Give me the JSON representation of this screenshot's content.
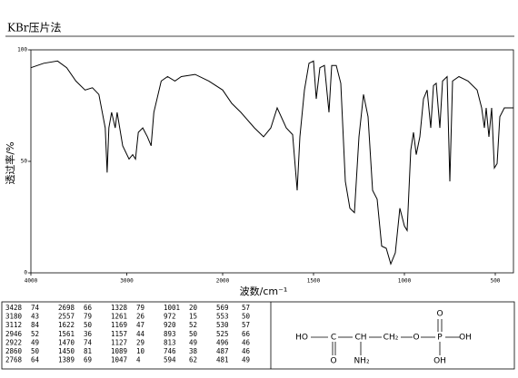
{
  "chart_data": {
    "type": "line",
    "title": "KBr压片法",
    "xlabel": "波数/cm⁻¹",
    "ylabel": "透过率/%",
    "xlim": [
      4000,
      400
    ],
    "x_scale_change": 2000,
    "xticks": [
      4000,
      3000,
      2000,
      1500,
      1000,
      500
    ],
    "ylim": [
      0,
      100
    ],
    "yticks": [
      0,
      50,
      100
    ],
    "color": "#000000",
    "grid": false,
    "x": [
      4000,
      3866,
      3722,
      3627,
      3531,
      3435,
      3358,
      3291,
      3225,
      3205,
      3187,
      3158,
      3120,
      3100,
      3043,
      2976,
      2938,
      2909,
      2880,
      2833,
      2785,
      2746,
      2718,
      2641,
      2574,
      2498,
      2431,
      2287,
      2144,
      2000,
      1950,
      1900,
      1825,
      1775,
      1735,
      1700,
      1650,
      1615,
      1590,
      1575,
      1550,
      1525,
      1500,
      1485,
      1465,
      1440,
      1415,
      1400,
      1375,
      1350,
      1325,
      1300,
      1275,
      1250,
      1225,
      1200,
      1175,
      1150,
      1125,
      1100,
      1075,
      1050,
      1025,
      1000,
      985,
      965,
      950,
      935,
      915,
      895,
      875,
      855,
      840,
      825,
      805,
      790,
      765,
      750,
      735,
      700,
      650,
      600,
      575,
      560,
      550,
      535,
      520,
      505,
      490,
      475,
      450,
      400
    ],
    "values": [
      92,
      94,
      95,
      92,
      86,
      82,
      83,
      80,
      65,
      45,
      65,
      72,
      65,
      72,
      57,
      51,
      53,
      51,
      63,
      65,
      61,
      57,
      72,
      86,
      88,
      86,
      88,
      89,
      86,
      82,
      76,
      72,
      65,
      61,
      65,
      74,
      65,
      62,
      37,
      61,
      82,
      94,
      95,
      78,
      92,
      93,
      72,
      93,
      93,
      85,
      41,
      29,
      27,
      61,
      80,
      70,
      37,
      33,
      12,
      11,
      4,
      9,
      29,
      21,
      19,
      55,
      63,
      53,
      61,
      78,
      82,
      65,
      84,
      85,
      65,
      86,
      88,
      41,
      86,
      88,
      86,
      82,
      74,
      65,
      74,
      61,
      74,
      47,
      49,
      70,
      74,
      74
    ]
  },
  "peak_table": {
    "columns": [
      [
        [
          3428,
          74
        ],
        [
          3180,
          43
        ],
        [
          3112,
          84
        ],
        [
          2946,
          52
        ],
        [
          2922,
          49
        ],
        [
          2860,
          50
        ],
        [
          2768,
          64
        ]
      ],
      [
        [
          2698,
          66
        ],
        [
          2557,
          79
        ],
        [
          1622,
          50
        ],
        [
          1561,
          36
        ],
        [
          1470,
          74
        ],
        [
          1450,
          81
        ],
        [
          1389,
          69
        ]
      ],
      [
        [
          1328,
          79
        ],
        [
          1261,
          26
        ],
        [
          1169,
          47
        ],
        [
          1157,
          44
        ],
        [
          1127,
          29
        ],
        [
          1089,
          10
        ],
        [
          1047,
          4
        ]
      ],
      [
        [
          1001,
          20
        ],
        [
          972,
          15
        ],
        [
          920,
          52
        ],
        [
          893,
          50
        ],
        [
          813,
          49
        ],
        [
          746,
          38
        ],
        [
          594,
          62
        ]
      ],
      [
        [
          569,
          57
        ],
        [
          553,
          50
        ],
        [
          530,
          57
        ],
        [
          525,
          66
        ],
        [
          496,
          46
        ],
        [
          487,
          46
        ],
        [
          481,
          49
        ]
      ]
    ]
  },
  "structure": {
    "labels": [
      "HO",
      "C",
      "O",
      "CH",
      "NH₂",
      "CH₂",
      "O",
      "P",
      "O",
      "OH",
      "OH"
    ]
  }
}
